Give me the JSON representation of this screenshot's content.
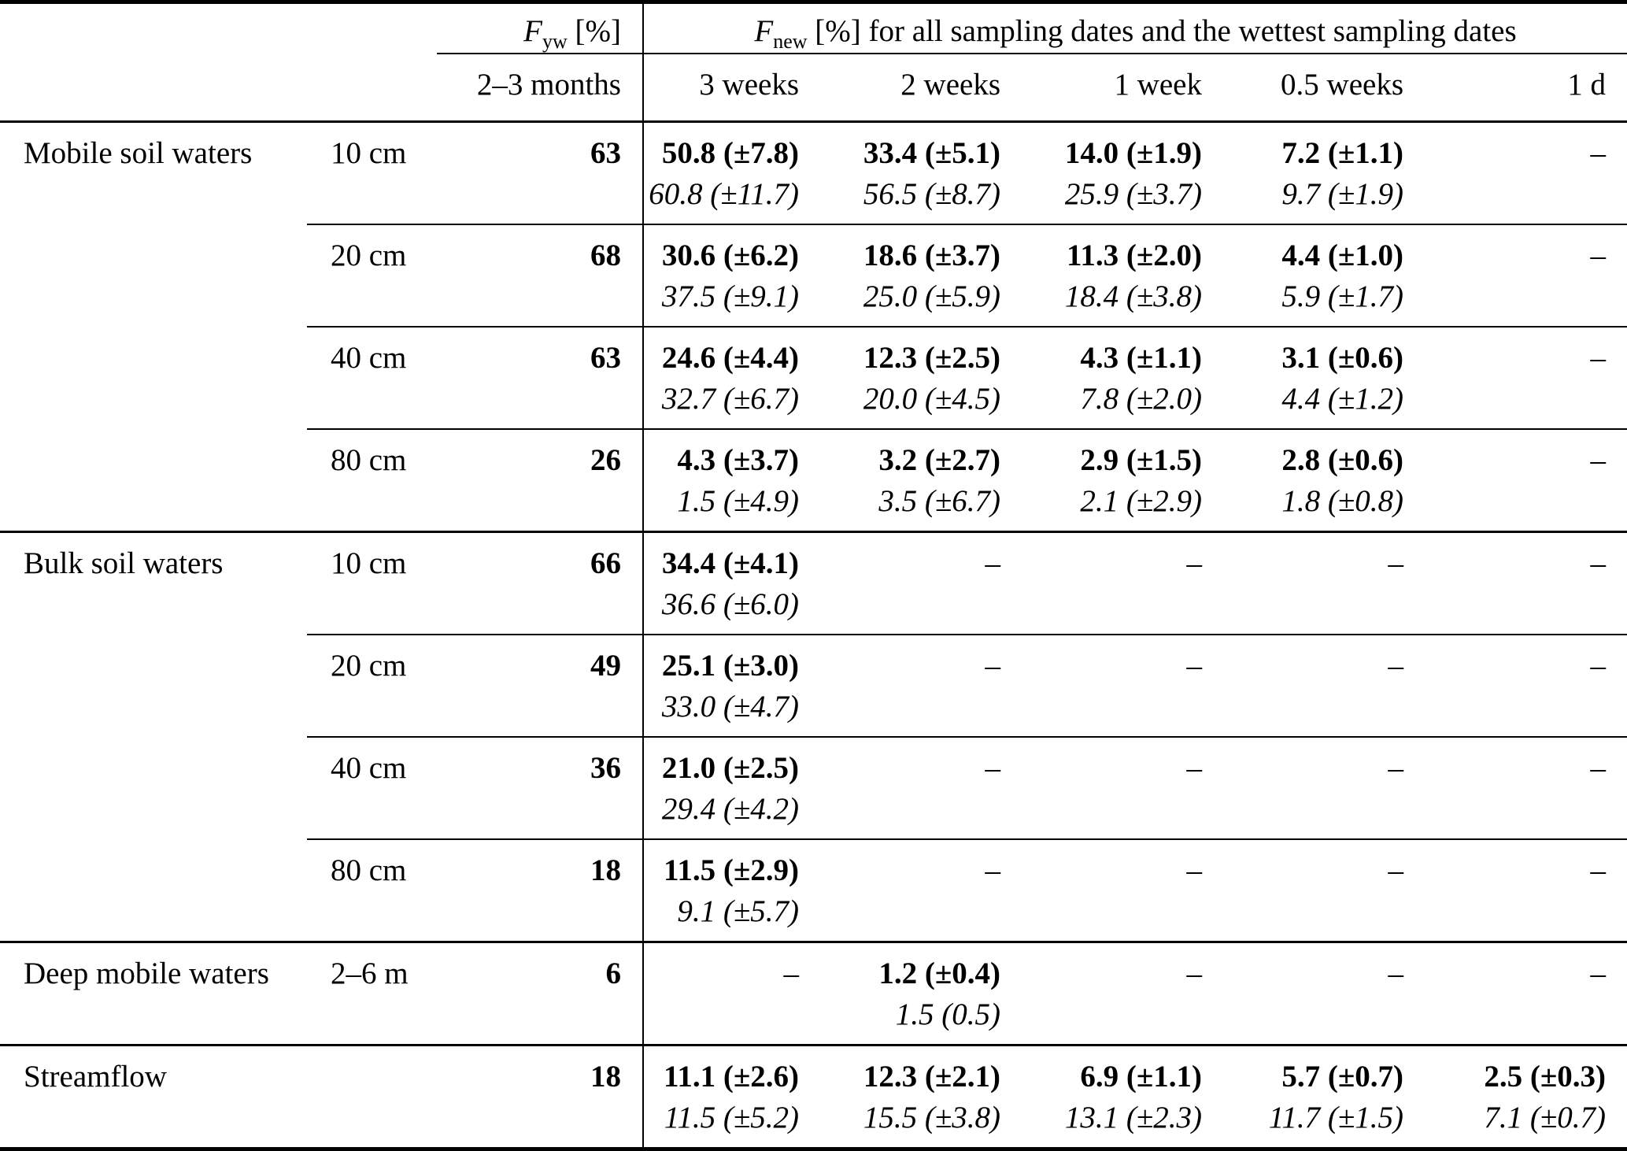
{
  "table": {
    "header": {
      "fyw": {
        "symbol": "F",
        "sub": "yw",
        "unit": " [%]"
      },
      "fnew": {
        "symbol": "F",
        "sub": "new",
        "rest": " [%] for all sampling dates and the wettest sampling dates"
      },
      "fyw_period": "2–3 months",
      "periods": [
        "3 weeks",
        "2 weeks",
        "1 week",
        "0.5 weeks",
        "1 d"
      ]
    },
    "missing_marker": "–",
    "rows": [
      {
        "group": "Mobile soil waters",
        "depth": "10 cm",
        "fyw": "63",
        "sep": "none",
        "cells": [
          {
            "main": "50.8 (±7.8)",
            "wet": "60.8 (±11.7)"
          },
          {
            "main": "33.4 (±5.1)",
            "wet": "56.5 (±8.7)"
          },
          {
            "main": "14.0 (±1.9)",
            "wet": "25.9 (±3.7)"
          },
          {
            "main": "7.2 (±1.1)",
            "wet": "9.7 (±1.9)"
          },
          {
            "main": "–",
            "wet": ""
          }
        ]
      },
      {
        "group": "",
        "depth": "20 cm",
        "fyw": "68",
        "sep": "sub",
        "cells": [
          {
            "main": "30.6 (±6.2)",
            "wet": "37.5 (±9.1)"
          },
          {
            "main": "18.6 (±3.7)",
            "wet": "25.0 (±5.9)"
          },
          {
            "main": "11.3 (±2.0)",
            "wet": "18.4 (±3.8)"
          },
          {
            "main": "4.4 (±1.0)",
            "wet": "5.9 (±1.7)"
          },
          {
            "main": "–",
            "wet": ""
          }
        ]
      },
      {
        "group": "",
        "depth": "40 cm",
        "fyw": "63",
        "sep": "sub",
        "cells": [
          {
            "main": "24.6 (±4.4)",
            "wet": "32.7 (±6.7)"
          },
          {
            "main": "12.3 (±2.5)",
            "wet": "20.0 (±4.5)"
          },
          {
            "main": "4.3 (±1.1)",
            "wet": "7.8 (±2.0)"
          },
          {
            "main": "3.1 (±0.6)",
            "wet": "4.4 (±1.2)"
          },
          {
            "main": "–",
            "wet": ""
          }
        ]
      },
      {
        "group": "",
        "depth": "80 cm",
        "fyw": "26",
        "sep": "sub",
        "cells": [
          {
            "main": "4.3 (±3.7)",
            "wet": "1.5 (±4.9)"
          },
          {
            "main": "3.2 (±2.7)",
            "wet": "3.5 (±6.7)"
          },
          {
            "main": "2.9 (±1.5)",
            "wet": "2.1 (±2.9)"
          },
          {
            "main": "2.8 (±0.6)",
            "wet": "1.8 (±0.8)"
          },
          {
            "main": "–",
            "wet": ""
          }
        ]
      },
      {
        "group": "Bulk soil waters",
        "depth": "10 cm",
        "fyw": "66",
        "sep": "section",
        "cells": [
          {
            "main": "34.4 (±4.1)",
            "wet": "36.6 (±6.0)"
          },
          {
            "main": "–",
            "wet": ""
          },
          {
            "main": "–",
            "wet": ""
          },
          {
            "main": "–",
            "wet": ""
          },
          {
            "main": "–",
            "wet": ""
          }
        ]
      },
      {
        "group": "",
        "depth": "20 cm",
        "fyw": "49",
        "sep": "sub",
        "cells": [
          {
            "main": "25.1 (±3.0)",
            "wet": "33.0 (±4.7)"
          },
          {
            "main": "–",
            "wet": ""
          },
          {
            "main": "–",
            "wet": ""
          },
          {
            "main": "–",
            "wet": ""
          },
          {
            "main": "–",
            "wet": ""
          }
        ]
      },
      {
        "group": "",
        "depth": "40 cm",
        "fyw": "36",
        "sep": "sub",
        "cells": [
          {
            "main": "21.0 (±2.5)",
            "wet": "29.4 (±4.2)"
          },
          {
            "main": "–",
            "wet": ""
          },
          {
            "main": "–",
            "wet": ""
          },
          {
            "main": "–",
            "wet": ""
          },
          {
            "main": "–",
            "wet": ""
          }
        ]
      },
      {
        "group": "",
        "depth": "80 cm",
        "fyw": "18",
        "sep": "sub",
        "cells": [
          {
            "main": "11.5 (±2.9)",
            "wet": "9.1 (±5.7)"
          },
          {
            "main": "–",
            "wet": ""
          },
          {
            "main": "–",
            "wet": ""
          },
          {
            "main": "–",
            "wet": ""
          },
          {
            "main": "–",
            "wet": ""
          }
        ]
      },
      {
        "group": "Deep mobile waters",
        "depth": "2–6 m",
        "fyw": "6",
        "sep": "section",
        "cells": [
          {
            "main": "–",
            "wet": ""
          },
          {
            "main": "1.2 (±0.4)",
            "wet": "1.5 (0.5)"
          },
          {
            "main": "–",
            "wet": ""
          },
          {
            "main": "–",
            "wet": ""
          },
          {
            "main": "–",
            "wet": ""
          }
        ]
      },
      {
        "group": "Streamflow",
        "depth": "",
        "fyw": "18",
        "sep": "section",
        "cells": [
          {
            "main": "11.1 (±2.6)",
            "wet": "11.5 (±5.2)"
          },
          {
            "main": "12.3 (±2.1)",
            "wet": "15.5 (±3.8)"
          },
          {
            "main": "6.9 (±1.1)",
            "wet": "13.1 (±2.3)"
          },
          {
            "main": "5.7 (±0.7)",
            "wet": "11.7 (±1.5)"
          },
          {
            "main": "2.5 (±0.3)",
            "wet": "7.1 (±0.7)"
          }
        ]
      }
    ]
  }
}
